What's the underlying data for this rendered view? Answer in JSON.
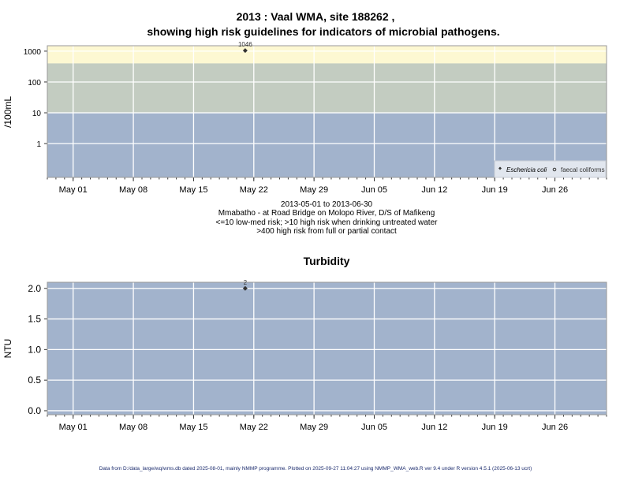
{
  "chart_data": [
    {
      "type": "scatter",
      "title": "2013 : Vaal WMA, site 188262 ,",
      "subtitle": "showing high risk guidelines for indicators of microbial pathogens.",
      "ylabel": "/100mL",
      "yscale": "log",
      "ylim": [
        0.08,
        1500
      ],
      "yticks": [
        1,
        10,
        100,
        1000
      ],
      "ytick_labels": [
        "1",
        "10",
        "100",
        "1000"
      ],
      "xlim": [
        "2013-04-28",
        "2013-07-02"
      ],
      "xticks": [
        "2013-05-01",
        "2013-05-08",
        "2013-05-15",
        "2013-05-22",
        "2013-05-29",
        "2013-06-05",
        "2013-06-12",
        "2013-06-19",
        "2013-06-26"
      ],
      "xtick_labels": [
        "May 01",
        "May 08",
        "May 15",
        "May 22",
        "May 29",
        "Jun 05",
        "Jun 12",
        "Jun 19",
        "Jun 26"
      ],
      "grid": true,
      "bands": [
        {
          "from": 0.08,
          "to": 10,
          "color": "#a2b3cc"
        },
        {
          "from": 10,
          "to": 400,
          "color": "#c3ccc1"
        },
        {
          "from": 400,
          "to": 1500,
          "color": "#fdf8d2"
        }
      ],
      "series": [
        {
          "name": "Eschericia coli",
          "marker": "filled-diamond",
          "points": [
            {
              "x": "2013-05-21",
              "y": 1046,
              "label": "1046"
            }
          ]
        },
        {
          "name": "faecal coliforms",
          "marker": "open-circle",
          "points": []
        }
      ],
      "legend": "bottom-right",
      "captions": [
        "2013-05-01 to 2013-06-30",
        "Mmabatho - at Road Bridge on Molopo River, D/S of Mafikeng",
        "<=10 low-med risk; >10 high risk when drinking untreated water",
        ">400 high risk from full or partial contact"
      ]
    },
    {
      "type": "scatter",
      "title": "Turbidity",
      "ylabel": "NTU",
      "ylim": [
        -0.065,
        2.1
      ],
      "yticks": [
        0,
        0.5,
        1,
        1.5,
        2
      ],
      "ytick_labels": [
        "0.0",
        "0.5",
        "1.0",
        "1.5",
        "2.0"
      ],
      "xlim": [
        "2013-04-28",
        "2013-07-02"
      ],
      "xticks": [
        "2013-05-01",
        "2013-05-08",
        "2013-05-15",
        "2013-05-22",
        "2013-05-29",
        "2013-06-05",
        "2013-06-12",
        "2013-06-19",
        "2013-06-26"
      ],
      "xtick_labels": [
        "May 01",
        "May 08",
        "May 15",
        "May 22",
        "May 29",
        "Jun 05",
        "Jun 12",
        "Jun 19",
        "Jun 26"
      ],
      "grid": true,
      "background": "#a2b3cc",
      "series": [
        {
          "marker": "filled-diamond",
          "points": [
            {
              "x": "2013-05-21",
              "y": 2,
              "label": "2"
            }
          ]
        }
      ]
    }
  ],
  "footer": "Data from D:/data_large/wq/wms.db dated 2025-08-01, mainly NMMP programme. Plotted on 2025-09-27 11:04:27 using NMMP_WMA_web.R ver 9.4 under R version 4.5.1 (2025-06-13 ucrt)"
}
